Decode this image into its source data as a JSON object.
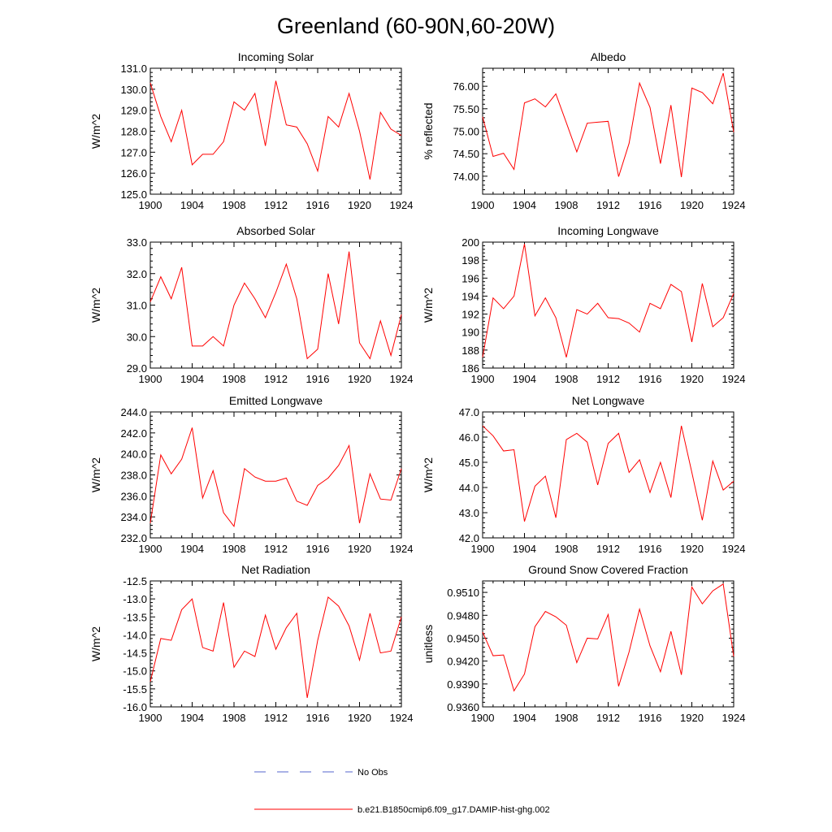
{
  "figure": {
    "title": "Greenland (60-90N,60-20W)"
  },
  "legend": {
    "entries": [
      {
        "label": "No Obs",
        "color": "#5566cc",
        "dash": true
      },
      {
        "label": "b.e21.B1850cmip6.f09_g17.DAMIP-hist-ghg.002",
        "color": "#ff0000",
        "dash": false
      }
    ]
  },
  "colors": {
    "series": "#ff0000",
    "axis": "#000000"
  },
  "chart_data": [
    {
      "type": "line",
      "title": "Incoming Solar",
      "xlabel": "",
      "ylabel": "W/m^2",
      "xlim": [
        1900,
        1924
      ],
      "ylim": [
        125.0,
        131.0
      ],
      "decimals": 1,
      "xticks": [
        1900,
        1904,
        1908,
        1912,
        1916,
        1920,
        1924
      ],
      "yticks": [
        125.0,
        126.0,
        127.0,
        128.0,
        129.0,
        130.0,
        131.0
      ],
      "x": [
        1900,
        1901,
        1902,
        1903,
        1904,
        1905,
        1906,
        1907,
        1908,
        1909,
        1910,
        1911,
        1912,
        1913,
        1914,
        1915,
        1916,
        1917,
        1918,
        1919,
        1920,
        1921,
        1922,
        1923,
        1924
      ],
      "series": [
        {
          "values": [
            130.3,
            128.7,
            127.5,
            129.0,
            126.4,
            126.9,
            126.9,
            127.5,
            129.4,
            129.0,
            129.8,
            127.3,
            130.4,
            128.3,
            128.2,
            127.4,
            126.1,
            128.7,
            128.2,
            129.8,
            128.0,
            125.7,
            128.9,
            128.1,
            127.8
          ]
        }
      ]
    },
    {
      "type": "line",
      "title": "Albedo",
      "xlabel": "",
      "ylabel": "% reflected",
      "xlim": [
        1900,
        1924
      ],
      "ylim": [
        73.6,
        76.4
      ],
      "decimals": 2,
      "xticks": [
        1900,
        1904,
        1908,
        1912,
        1916,
        1920,
        1924
      ],
      "yticks": [
        74.0,
        74.5,
        75.0,
        75.5,
        76.0
      ],
      "x": [
        1900,
        1901,
        1902,
        1903,
        1904,
        1905,
        1906,
        1907,
        1908,
        1909,
        1910,
        1911,
        1912,
        1913,
        1914,
        1915,
        1916,
        1917,
        1918,
        1919,
        1920,
        1921,
        1922,
        1923,
        1924
      ],
      "series": [
        {
          "values": [
            75.32,
            74.44,
            74.51,
            74.15,
            75.63,
            75.72,
            75.54,
            75.83,
            75.19,
            74.54,
            75.18,
            75.2,
            75.22,
            73.99,
            74.73,
            76.07,
            75.53,
            74.28,
            75.58,
            73.98,
            75.96,
            75.86,
            75.61,
            76.29,
            74.98
          ]
        }
      ]
    },
    {
      "type": "line",
      "title": "Absorbed Solar",
      "xlabel": "",
      "ylabel": "W/m^2",
      "xlim": [
        1900,
        1924
      ],
      "ylim": [
        29.0,
        33.0
      ],
      "decimals": 1,
      "xticks": [
        1900,
        1904,
        1908,
        1912,
        1916,
        1920,
        1924
      ],
      "yticks": [
        29.0,
        30.0,
        31.0,
        32.0,
        33.0
      ],
      "x": [
        1900,
        1901,
        1902,
        1903,
        1904,
        1905,
        1906,
        1907,
        1908,
        1909,
        1910,
        1911,
        1912,
        1913,
        1914,
        1915,
        1916,
        1917,
        1918,
        1919,
        1920,
        1921,
        1922,
        1923,
        1924
      ],
      "series": [
        {
          "values": [
            31.1,
            31.9,
            31.2,
            32.2,
            29.7,
            29.7,
            30.0,
            29.7,
            31.0,
            31.7,
            31.2,
            30.6,
            31.4,
            32.3,
            31.2,
            29.3,
            29.6,
            32.0,
            30.4,
            32.7,
            29.8,
            29.3,
            30.5,
            29.4,
            30.7
          ]
        }
      ]
    },
    {
      "type": "line",
      "title": "Incoming Longwave",
      "xlabel": "",
      "ylabel": "W/m^2",
      "xlim": [
        1900,
        1924
      ],
      "ylim": [
        186,
        200
      ],
      "decimals": 0,
      "xticks": [
        1900,
        1904,
        1908,
        1912,
        1916,
        1920,
        1924
      ],
      "yticks": [
        186,
        188,
        190,
        192,
        194,
        196,
        198,
        200
      ],
      "x": [
        1900,
        1901,
        1902,
        1903,
        1904,
        1905,
        1906,
        1907,
        1908,
        1909,
        1910,
        1911,
        1912,
        1913,
        1914,
        1915,
        1916,
        1917,
        1918,
        1919,
        1920,
        1921,
        1922,
        1923,
        1924
      ],
      "series": [
        {
          "values": [
            187.2,
            193.8,
            192.6,
            194.0,
            199.8,
            191.8,
            193.8,
            191.6,
            187.2,
            192.5,
            192.0,
            193.2,
            191.6,
            191.5,
            191.0,
            190.0,
            193.2,
            192.6,
            195.3,
            194.5,
            188.9,
            195.4,
            190.6,
            191.6,
            194.3
          ]
        }
      ]
    },
    {
      "type": "line",
      "title": "Emitted Longwave",
      "xlabel": "",
      "ylabel": "W/m^2",
      "xlim": [
        1900,
        1924
      ],
      "ylim": [
        232.0,
        244.0
      ],
      "decimals": 1,
      "xticks": [
        1900,
        1904,
        1908,
        1912,
        1916,
        1920,
        1924
      ],
      "yticks": [
        232.0,
        234.0,
        236.0,
        238.0,
        240.0,
        242.0,
        244.0
      ],
      "x": [
        1900,
        1901,
        1902,
        1903,
        1904,
        1905,
        1906,
        1907,
        1908,
        1909,
        1910,
        1911,
        1912,
        1913,
        1914,
        1915,
        1916,
        1917,
        1918,
        1919,
        1920,
        1921,
        1922,
        1923,
        1924
      ],
      "series": [
        {
          "values": [
            233.4,
            239.9,
            238.1,
            239.5,
            242.5,
            235.8,
            238.4,
            234.4,
            233.1,
            238.6,
            237.8,
            237.4,
            237.4,
            237.7,
            235.5,
            235.1,
            237.0,
            237.7,
            238.9,
            240.8,
            233.4,
            238.1,
            235.7,
            235.6,
            238.6
          ]
        }
      ]
    },
    {
      "type": "line",
      "title": "Net Longwave",
      "xlabel": "",
      "ylabel": "W/m^2",
      "xlim": [
        1900,
        1924
      ],
      "ylim": [
        42.0,
        47.0
      ],
      "decimals": 1,
      "xticks": [
        1900,
        1904,
        1908,
        1912,
        1916,
        1920,
        1924
      ],
      "yticks": [
        42.0,
        43.0,
        44.0,
        45.0,
        46.0,
        47.0
      ],
      "x": [
        1900,
        1901,
        1902,
        1903,
        1904,
        1905,
        1906,
        1907,
        1908,
        1909,
        1910,
        1911,
        1912,
        1913,
        1914,
        1915,
        1916,
        1917,
        1918,
        1919,
        1920,
        1921,
        1922,
        1923,
        1924
      ],
      "series": [
        {
          "values": [
            46.45,
            46.05,
            45.45,
            45.5,
            42.65,
            44.05,
            44.45,
            42.8,
            45.9,
            46.15,
            45.8,
            44.1,
            45.75,
            46.15,
            44.6,
            45.1,
            43.8,
            45.0,
            43.6,
            46.45,
            44.6,
            42.7,
            45.05,
            43.9,
            44.25
          ]
        }
      ]
    },
    {
      "type": "line",
      "title": "Net Radiation",
      "xlabel": "",
      "ylabel": "W/m^2",
      "xlim": [
        1900,
        1924
      ],
      "ylim": [
        -16.0,
        -12.5
      ],
      "decimals": 1,
      "xticks": [
        1900,
        1904,
        1908,
        1912,
        1916,
        1920,
        1924
      ],
      "yticks": [
        -16.0,
        -15.5,
        -15.0,
        -14.5,
        -14.0,
        -13.5,
        -13.0,
        -12.5
      ],
      "x": [
        1900,
        1901,
        1902,
        1903,
        1904,
        1905,
        1906,
        1907,
        1908,
        1909,
        1910,
        1911,
        1912,
        1913,
        1914,
        1915,
        1916,
        1917,
        1918,
        1919,
        1920,
        1921,
        1922,
        1923,
        1924
      ],
      "series": [
        {
          "values": [
            -15.3,
            -14.1,
            -14.15,
            -13.3,
            -13.0,
            -14.35,
            -14.45,
            -13.1,
            -14.9,
            -14.45,
            -14.6,
            -13.45,
            -14.4,
            -13.8,
            -13.4,
            -15.75,
            -14.15,
            -12.95,
            -13.2,
            -13.75,
            -14.7,
            -13.4,
            -14.5,
            -14.45,
            -13.5
          ]
        }
      ]
    },
    {
      "type": "line",
      "title": "Ground Snow Covered Fraction",
      "xlabel": "",
      "ylabel": "unitless",
      "xlim": [
        1900,
        1924
      ],
      "ylim": [
        0.936,
        0.9525
      ],
      "decimals": 4,
      "xticks": [
        1900,
        1904,
        1908,
        1912,
        1916,
        1920,
        1924
      ],
      "yticks": [
        0.936,
        0.939,
        0.942,
        0.945,
        0.948,
        0.951
      ],
      "x": [
        1900,
        1901,
        1902,
        1903,
        1904,
        1905,
        1906,
        1907,
        1908,
        1909,
        1910,
        1911,
        1912,
        1913,
        1914,
        1915,
        1916,
        1917,
        1918,
        1919,
        1920,
        1921,
        1922,
        1923,
        1924
      ],
      "series": [
        {
          "values": [
            0.9458,
            0.9427,
            0.9428,
            0.9381,
            0.9403,
            0.9465,
            0.9485,
            0.9478,
            0.9467,
            0.9418,
            0.945,
            0.9449,
            0.9481,
            0.9387,
            0.9432,
            0.9488,
            0.944,
            0.9406,
            0.9459,
            0.9402,
            0.9517,
            0.9495,
            0.9512,
            0.9521,
            0.9426
          ]
        }
      ]
    }
  ]
}
